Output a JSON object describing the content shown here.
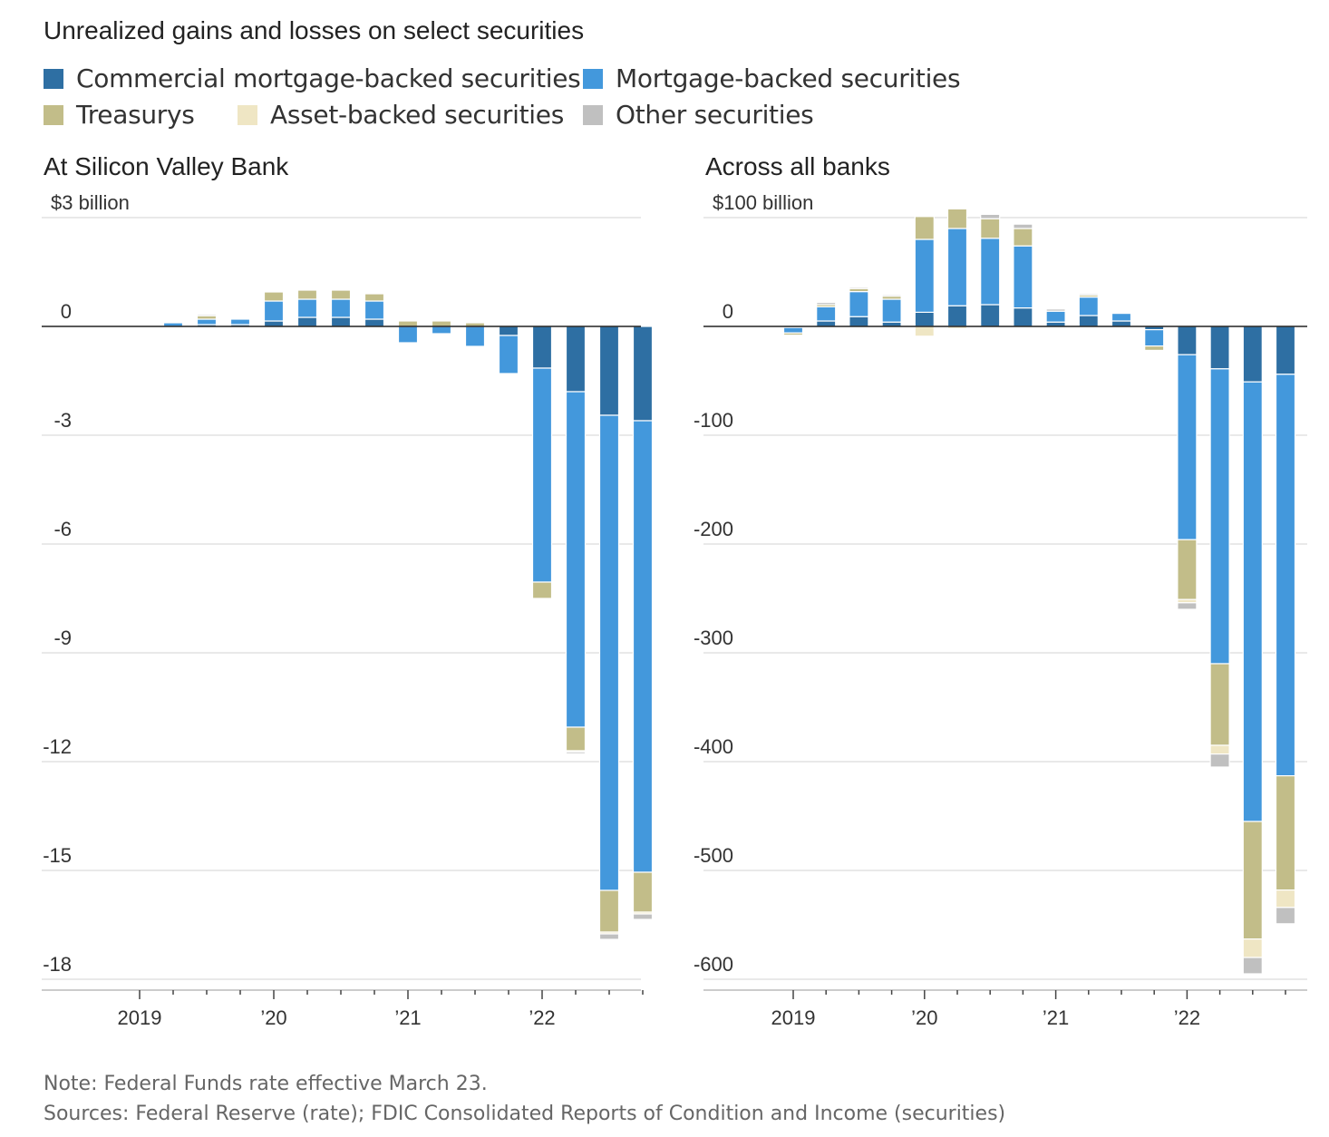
{
  "title": "Unrealized gains and losses on select securities",
  "legend": [
    {
      "label": "Commercial mortgage-backed securities",
      "color": "#2e6fa3"
    },
    {
      "label": "Mortgage-backed securities",
      "color": "#4398dc"
    },
    {
      "label": "Treasurys",
      "color": "#c2bd89"
    },
    {
      "label": "Asset-backed securities",
      "color": "#efe6c4"
    },
    {
      "label": "Other securities",
      "color": "#c0c0c0"
    }
  ],
  "chart_data": [
    {
      "type": "bar",
      "stacked": true,
      "title": "At Silicon Valley Bank",
      "unit_label": "$3 billion",
      "ylim": [
        -18,
        3
      ],
      "y_ticks": [
        3,
        0,
        -3,
        -6,
        -9,
        -12,
        -15,
        -18
      ],
      "y_tick_labels": [
        "$3 billion",
        "0",
        "-3",
        "-6",
        "-9",
        "-12",
        "-15",
        "-18"
      ],
      "x_tick_labels": [
        {
          "label": "2019",
          "quarter_index": 0
        },
        {
          "label": "’20",
          "quarter_index": 4
        },
        {
          "label": "’21",
          "quarter_index": 8
        },
        {
          "label": "’22",
          "quarter_index": 12
        }
      ],
      "categories": [
        "2019 Q1",
        "2019 Q2",
        "2019 Q3",
        "2019 Q4",
        "2020 Q1",
        "2020 Q2",
        "2020 Q3",
        "2020 Q4",
        "2021 Q1",
        "2021 Q2",
        "2021 Q3",
        "2021 Q4",
        "2022 Q1",
        "2022 Q2",
        "2022 Q3",
        "2022 Q4"
      ],
      "series": [
        {
          "name": "Commercial mortgage-backed securities",
          "color": "#2e6fa3",
          "values": [
            0,
            0,
            0.05,
            0.05,
            0.15,
            0.25,
            0.25,
            0.2,
            0,
            0,
            0,
            -0.25,
            -1.15,
            -1.8,
            -2.45,
            -2.6
          ]
        },
        {
          "name": "Mortgage-backed securities",
          "color": "#4398dc",
          "values": [
            0,
            0.1,
            0.15,
            0.15,
            0.55,
            0.5,
            0.5,
            0.5,
            -0.45,
            -0.2,
            -0.55,
            -1.05,
            -5.9,
            -9.25,
            -13.1,
            -12.45
          ]
        },
        {
          "name": "Treasurys",
          "color": "#c2bd89",
          "values": [
            0,
            0,
            0.1,
            0,
            0.25,
            0.25,
            0.25,
            0.2,
            0.15,
            0.15,
            0.1,
            0,
            -0.45,
            -0.65,
            -1.15,
            -1.1
          ]
        },
        {
          "name": "Asset-backed securities",
          "color": "#efe6c4",
          "values": [
            0,
            0,
            0,
            0,
            0,
            0,
            0,
            0,
            0,
            0,
            0,
            0,
            0,
            -0.03,
            -0.05,
            -0.05
          ]
        },
        {
          "name": "Other securities",
          "color": "#c0c0c0",
          "values": [
            0,
            0,
            0.03,
            0,
            0,
            0,
            0,
            0,
            0,
            0,
            0,
            0,
            0,
            -0.05,
            -0.15,
            -0.15
          ]
        }
      ]
    },
    {
      "type": "bar",
      "stacked": true,
      "title": "Across all banks",
      "unit_label": "$100 billion",
      "ylim": [
        -600,
        100
      ],
      "y_ticks": [
        100,
        0,
        -100,
        -200,
        -300,
        -400,
        -500,
        -600
      ],
      "y_tick_labels": [
        "$100 billion",
        "0",
        "-100",
        "-200",
        "-300",
        "-400",
        "-500",
        "-600"
      ],
      "x_tick_labels": [
        {
          "label": "2019",
          "quarter_index": 0
        },
        {
          "label": "’20",
          "quarter_index": 4
        },
        {
          "label": "’21",
          "quarter_index": 8
        },
        {
          "label": "’22",
          "quarter_index": 12
        }
      ],
      "categories": [
        "2019 Q1",
        "2019 Q2",
        "2019 Q3",
        "2019 Q4",
        "2020 Q1",
        "2020 Q2",
        "2020 Q3",
        "2020 Q4",
        "2021 Q1",
        "2021 Q2",
        "2021 Q3",
        "2021 Q4",
        "2022 Q1",
        "2022 Q2",
        "2022 Q3",
        "2022 Q4"
      ],
      "series": [
        {
          "name": "Commercial mortgage-backed securities",
          "color": "#2e6fa3",
          "values": [
            -1,
            5,
            9,
            4,
            13,
            19,
            20,
            17,
            4,
            10,
            5,
            -3,
            -26,
            -39,
            -51,
            -44
          ]
        },
        {
          "name": "Mortgage-backed securities",
          "color": "#4398dc",
          "values": [
            -5,
            13,
            23,
            21,
            67,
            71,
            61,
            57,
            10,
            17,
            7,
            -15,
            -170,
            -271,
            -404,
            -369
          ]
        },
        {
          "name": "Treasurys",
          "color": "#c2bd89",
          "values": [
            -2,
            2,
            3,
            3,
            21,
            18,
            18,
            16,
            0,
            2,
            0,
            -4,
            -55,
            -75,
            -108,
            -105
          ]
        },
        {
          "name": "Asset-backed securities",
          "color": "#efe6c4",
          "values": [
            0,
            0,
            0,
            0,
            -9,
            -2,
            0,
            0,
            0,
            0,
            0,
            0,
            -3,
            -8,
            -17,
            -16
          ]
        },
        {
          "name": "Other securities",
          "color": "#c0c0c0",
          "values": [
            0,
            2,
            1,
            1,
            0,
            0,
            4,
            4,
            2,
            1,
            0,
            0,
            -6,
            -12,
            -15,
            -15
          ]
        }
      ]
    }
  ],
  "footer": {
    "note": "Note: Federal Funds rate effective March 23.",
    "sources": "Sources: Federal Reserve (rate); FDIC Consolidated Reports of Condition and Income (securities)"
  }
}
